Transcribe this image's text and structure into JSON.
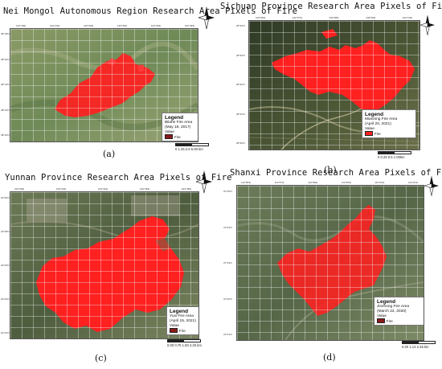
{
  "panels": [
    {
      "id": "a",
      "title": "Nei Mongol Autonomous Region Research Area Pixels of Fire",
      "label": "(a)",
      "legend": {
        "title": "Legend",
        "name": "Bilahe Fire Area",
        "date": "(May 18, 2017)",
        "value_label": "Value",
        "class": "Fire"
      },
      "scale": "0  1.25  2.5         5.00 km",
      "colors": {
        "terrain": "#6e8a58",
        "fire": "#ff2020"
      }
    },
    {
      "id": "b",
      "title": "Sichuan Province Research Area Pixels of Fire",
      "label": "(b)",
      "legend": {
        "title": "Legend",
        "name": "Mianning Fire Area",
        "date": "(April 20, 2021)",
        "value_label": "Value",
        "class": "Fire"
      },
      "scale": "0  0.25  0.5         1.00km",
      "colors": {
        "terrain": "#4f5a3a",
        "fire": "#ff2020"
      }
    },
    {
      "id": "c",
      "title": "Yunnan Province Research Area Pixels of Fire",
      "label": "(c)",
      "legend": {
        "title": "Legend",
        "name": "Yuxi Fire Area",
        "date": "(April 15, 2021)",
        "value_label": "Value",
        "class": "Fire"
      },
      "scale": "0.00  0.75  1.50         2.25 km",
      "colors": {
        "terrain": "#5d6b4b",
        "fire": "#ff2020"
      }
    },
    {
      "id": "d",
      "title": "Shanxi Province Research Area Pixels of Fire",
      "label": "(d)",
      "legend": {
        "title": "Legend",
        "name": "Jinzhong Fire Area",
        "date": "(March 22, 2020)",
        "value_label": "Value",
        "class": "Fire"
      },
      "scale": "0.00  1.13       2.25 km",
      "colors": {
        "terrain": "#5f7050",
        "fire": "#ff2020"
      }
    }
  ],
  "compass_label": "N"
}
